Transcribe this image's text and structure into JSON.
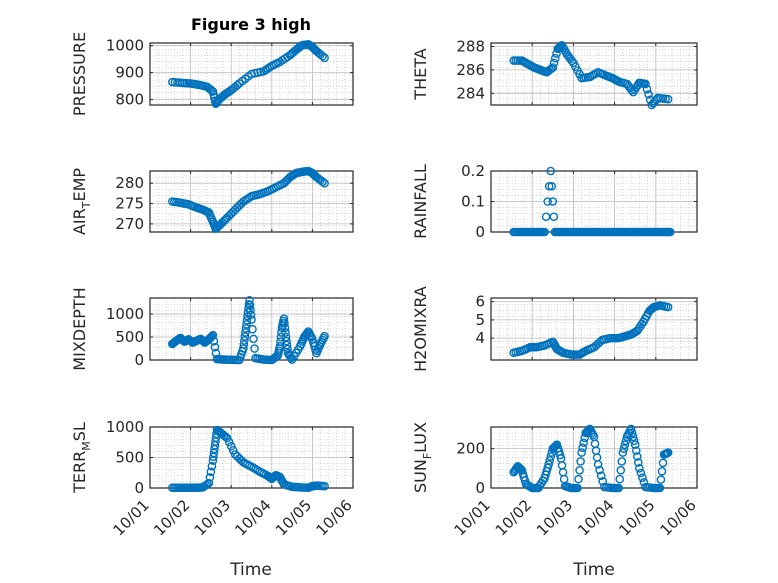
{
  "figure": {
    "title": "Figure 3 high",
    "xlabel": "Time",
    "xtick_labels": [
      "10/01",
      "10/02",
      "10/03",
      "10/04",
      "10/05",
      "10/06"
    ],
    "marker_color": "#0072BD"
  },
  "chart_data": [
    {
      "type": "scatter",
      "ylabel_main": "PRESSURE",
      "ylabel_sub": "",
      "ylabel_tail": "",
      "ylim": [
        780,
        1010
      ],
      "yticks": [
        800,
        900,
        1000
      ],
      "grid": true,
      "x": [
        1.55,
        1.8,
        2.0,
        2.2,
        2.4,
        2.55,
        2.62,
        2.7,
        2.85,
        3.0,
        3.2,
        3.5,
        3.8,
        4.0,
        4.2,
        4.45,
        4.6,
        4.75,
        4.9,
        5.0,
        5.1,
        5.3
      ],
      "y": [
        865,
        862,
        860,
        855,
        848,
        830,
        785,
        800,
        820,
        835,
        860,
        895,
        905,
        925,
        940,
        965,
        985,
        1002,
        1005,
        995,
        980,
        955
      ]
    },
    {
      "type": "scatter",
      "ylabel_main": "THETA",
      "ylabel_sub": "",
      "ylabel_tail": "",
      "ylim": [
        283,
        288.3
      ],
      "yticks": [
        284,
        286,
        288
      ],
      "grid": true,
      "x": [
        1.55,
        1.75,
        1.9,
        2.05,
        2.2,
        2.35,
        2.5,
        2.62,
        2.72,
        2.85,
        3.0,
        3.2,
        3.4,
        3.6,
        3.8,
        3.95,
        4.1,
        4.3,
        4.45,
        4.6,
        4.75,
        4.9,
        5.05,
        5.3
      ],
      "y": [
        286.8,
        286.8,
        286.5,
        286.2,
        286.0,
        285.8,
        286.2,
        287.8,
        288.1,
        287.3,
        286.6,
        285.3,
        285.4,
        285.8,
        285.5,
        285.3,
        285.0,
        284.8,
        284.1,
        284.9,
        284.8,
        283.0,
        283.6,
        283.5
      ]
    },
    {
      "type": "scatter",
      "ylabel_main": "AIR",
      "ylabel_sub": "T",
      "ylabel_tail": "EMP",
      "ylim": [
        268,
        283
      ],
      "yticks": [
        270,
        275,
        280
      ],
      "grid": true,
      "x": [
        1.55,
        1.75,
        1.95,
        2.15,
        2.3,
        2.45,
        2.55,
        2.62,
        2.75,
        2.9,
        3.1,
        3.3,
        3.5,
        3.7,
        3.9,
        4.1,
        4.3,
        4.45,
        4.6,
        4.75,
        4.9,
        5.0,
        5.1,
        5.3
      ],
      "y": [
        275.5,
        275.2,
        274.8,
        274.0,
        273.5,
        272.8,
        270.5,
        268.8,
        270.0,
        271.5,
        273.5,
        275.5,
        276.8,
        277.3,
        278.0,
        279.0,
        280.0,
        281.5,
        282.5,
        282.8,
        283.0,
        282.5,
        281.5,
        280.0
      ]
    },
    {
      "type": "scatter",
      "ylabel_main": "RAINFALL",
      "ylabel_sub": "",
      "ylabel_tail": "",
      "ylim": [
        0,
        0.2
      ],
      "yticks": [
        0,
        0.1,
        0.2
      ],
      "grid": true,
      "x": [
        1.55,
        1.7,
        1.85,
        2.0,
        2.15,
        2.3,
        2.45,
        2.55,
        2.7,
        2.85,
        3.0,
        3.15,
        3.3,
        3.45,
        3.6,
        3.75,
        3.9,
        4.05,
        4.2,
        4.35,
        4.5,
        4.65,
        4.8,
        4.95,
        5.1,
        5.25,
        5.35
      ],
      "y": [
        0,
        0,
        0,
        0,
        0,
        0,
        0.2,
        0,
        0,
        0,
        0,
        0,
        0,
        0,
        0,
        0,
        0,
        0,
        0,
        0,
        0,
        0,
        0,
        0,
        0,
        0,
        0
      ]
    },
    {
      "type": "scatter",
      "ylabel_main": "MIXDEPTH",
      "ylabel_sub": "",
      "ylabel_tail": "",
      "ylim": [
        0,
        1350
      ],
      "yticks": [
        0,
        500,
        1000
      ],
      "grid": true,
      "x": [
        1.55,
        1.65,
        1.75,
        1.85,
        1.95,
        2.05,
        2.15,
        2.25,
        2.35,
        2.45,
        2.55,
        2.65,
        2.8,
        3.0,
        3.2,
        3.3,
        3.35,
        3.4,
        3.45,
        3.5,
        3.6,
        3.8,
        4.0,
        4.15,
        4.2,
        4.25,
        4.3,
        4.35,
        4.4,
        4.5,
        4.7,
        4.8,
        4.9,
        5.0,
        5.1,
        5.2,
        5.3
      ],
      "y": [
        350,
        420,
        480,
        400,
        450,
        380,
        420,
        460,
        380,
        450,
        540,
        20,
        10,
        5,
        0,
        250,
        600,
        950,
        1300,
        880,
        40,
        10,
        0,
        100,
        300,
        700,
        900,
        500,
        150,
        10,
        300,
        500,
        620,
        450,
        150,
        350,
        520
      ]
    },
    {
      "type": "scatter",
      "ylabel_main": "H2OMIXRA",
      "ylabel_sub": "",
      "ylabel_tail": "",
      "ylim": [
        2.8,
        6.2
      ],
      "yticks": [
        4,
        5,
        6
      ],
      "grid": true,
      "x": [
        1.55,
        1.75,
        1.95,
        2.1,
        2.3,
        2.5,
        2.6,
        2.75,
        2.95,
        3.15,
        3.3,
        3.5,
        3.7,
        3.9,
        4.1,
        4.25,
        4.4,
        4.55,
        4.7,
        4.85,
        4.95,
        5.1,
        5.3
      ],
      "y": [
        3.2,
        3.3,
        3.5,
        3.5,
        3.6,
        3.8,
        3.4,
        3.2,
        3.1,
        3.1,
        3.3,
        3.5,
        3.9,
        4.0,
        4.0,
        4.1,
        4.2,
        4.4,
        4.9,
        5.5,
        5.7,
        5.8,
        5.7
      ]
    },
    {
      "type": "scatter",
      "ylabel_main": "TERR",
      "ylabel_sub": "M",
      "ylabel_tail": "SL",
      "ylim": [
        0,
        1000
      ],
      "yticks": [
        0,
        500,
        1000
      ],
      "grid": true,
      "x": [
        1.55,
        1.75,
        1.95,
        2.15,
        2.3,
        2.45,
        2.55,
        2.6,
        2.65,
        2.75,
        2.9,
        3.1,
        3.3,
        3.5,
        3.7,
        3.9,
        4.0,
        4.1,
        4.2,
        4.3,
        4.5,
        4.7,
        4.9,
        5.0,
        5.1,
        5.3
      ],
      "y": [
        5,
        5,
        5,
        5,
        10,
        80,
        450,
        700,
        950,
        900,
        820,
        550,
        420,
        350,
        270,
        200,
        150,
        210,
        180,
        60,
        20,
        10,
        5,
        30,
        40,
        30
      ]
    },
    {
      "type": "scatter",
      "ylabel_main": "SUN",
      "ylabel_sub": "F",
      "ylabel_tail": "LUX",
      "ylim": [
        0,
        310
      ],
      "yticks": [
        0,
        200
      ],
      "grid": true,
      "x": [
        1.55,
        1.65,
        1.75,
        1.85,
        2.0,
        2.15,
        2.3,
        2.4,
        2.5,
        2.6,
        2.7,
        2.8,
        2.95,
        3.1,
        3.2,
        3.3,
        3.4,
        3.5,
        3.6,
        3.75,
        3.95,
        4.1,
        4.2,
        4.3,
        4.4,
        4.5,
        4.6,
        4.75,
        4.95,
        5.1,
        5.2,
        5.3
      ],
      "y": [
        80,
        110,
        90,
        20,
        0,
        0,
        50,
        120,
        200,
        220,
        150,
        10,
        0,
        0,
        180,
        280,
        300,
        260,
        120,
        5,
        0,
        0,
        180,
        260,
        300,
        220,
        100,
        5,
        0,
        0,
        170,
        180
      ]
    }
  ]
}
